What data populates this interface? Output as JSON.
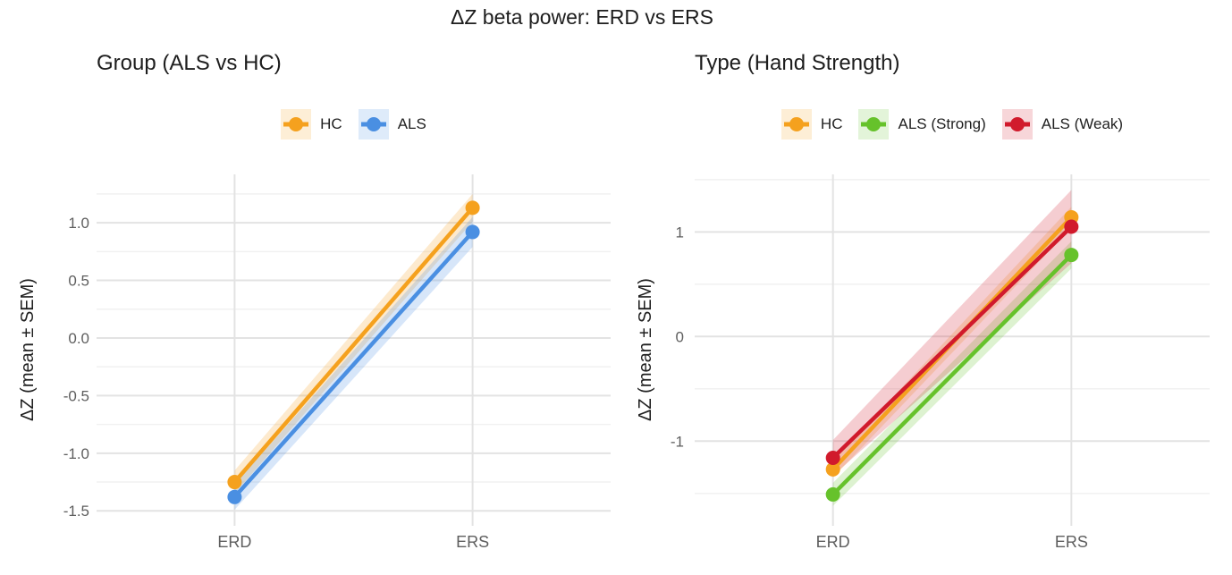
{
  "title": "ΔZ beta power: ERD vs ERS",
  "chart_data": [
    {
      "type": "line",
      "title": "Group (ALS vs HC)",
      "ylabel": "ΔZ (mean ± SEM)",
      "xlabel": "",
      "categories": [
        "ERD",
        "ERS"
      ],
      "y_ticks": [
        {
          "value": 1.0,
          "label": "1.0"
        },
        {
          "value": 0.5,
          "label": "0.5"
        },
        {
          "value": 0.0,
          "label": "0.0"
        },
        {
          "value": -0.5,
          "label": "-0.5"
        },
        {
          "value": -1.0,
          "label": "-1.0"
        },
        {
          "value": -1.5,
          "label": "-1.5"
        }
      ],
      "y_minor": [
        1.25,
        0.75,
        0.25,
        -0.25,
        -0.75,
        -1.25
      ],
      "ylim": [
        -1.63,
        1.42
      ],
      "grid": true,
      "legend_position": "top",
      "error_band": "SEM ribbon",
      "series": [
        {
          "name": "HC",
          "color": "#F5A11E",
          "values": [
            -1.25,
            1.13
          ],
          "sem": [
            0.1,
            0.12
          ]
        },
        {
          "name": "ALS",
          "color": "#4A8FE2",
          "values": [
            -1.38,
            0.92
          ],
          "sem": [
            0.11,
            0.13
          ]
        }
      ]
    },
    {
      "type": "line",
      "title": "Type (Hand Strength)",
      "ylabel": "ΔZ (mean ± SEM)",
      "xlabel": "",
      "categories": [
        "ERD",
        "ERS"
      ],
      "y_ticks": [
        {
          "value": 1,
          "label": "1"
        },
        {
          "value": 0,
          "label": "0"
        },
        {
          "value": -1,
          "label": "-1"
        }
      ],
      "y_minor": [
        1.5,
        0.5,
        -0.5,
        -1.5
      ],
      "ylim": [
        -1.81,
        1.55
      ],
      "grid": true,
      "legend_position": "top",
      "error_band": "SEM ribbon",
      "series": [
        {
          "name": "HC",
          "color": "#F5A11E",
          "values": [
            -1.27,
            1.14
          ],
          "sem": [
            0.08,
            0.1
          ]
        },
        {
          "name": "ALS (Strong)",
          "color": "#66C22B",
          "values": [
            -1.51,
            0.78
          ],
          "sem": [
            0.11,
            0.13
          ]
        },
        {
          "name": "ALS (Weak)",
          "color": "#D11A2C",
          "values": [
            -1.16,
            1.05
          ],
          "sem": [
            0.17,
            0.35
          ]
        }
      ]
    }
  ]
}
